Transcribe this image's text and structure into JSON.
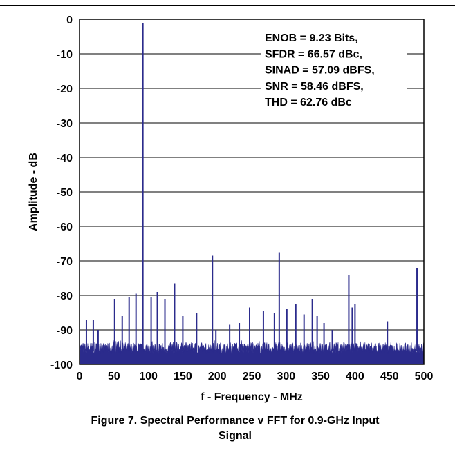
{
  "chart_data": {
    "type": "line",
    "ylabel": "Amplitude - dB",
    "xlabel": "f - Frequency - MHz",
    "xlim": [
      0,
      500
    ],
    "ylim": [
      -100,
      0
    ],
    "x_ticks": [
      "0",
      "50",
      "100",
      "150",
      "200",
      "250",
      "300",
      "350",
      "400",
      "450",
      "500"
    ],
    "y_ticks": [
      "0",
      "-10",
      "-20",
      "-30",
      "-40",
      "-50",
      "-60",
      "-70",
      "-80",
      "-90",
      "-100"
    ],
    "grid": "horizontal",
    "series_color": "#2b2b8c",
    "noise_floor_db": [
      -97,
      -93
    ],
    "spurs": [
      {
        "x": 92,
        "y": -1
      },
      {
        "x": 290,
        "y": -67.5
      },
      {
        "x": 193,
        "y": -68.5
      },
      {
        "x": 490,
        "y": -72
      },
      {
        "x": 391,
        "y": -74
      },
      {
        "x": 138,
        "y": -76.5
      },
      {
        "x": 82,
        "y": -79.5
      },
      {
        "x": 113,
        "y": -79
      },
      {
        "x": 72,
        "y": -80.5
      },
      {
        "x": 104,
        "y": -80.5
      },
      {
        "x": 124,
        "y": -81
      },
      {
        "x": 51,
        "y": -81
      },
      {
        "x": 400,
        "y": -82.5
      },
      {
        "x": 314,
        "y": -82.5
      },
      {
        "x": 338,
        "y": -81
      },
      {
        "x": 396,
        "y": -83.5
      },
      {
        "x": 247,
        "y": -83.5
      },
      {
        "x": 301,
        "y": -84
      },
      {
        "x": 267,
        "y": -84.5
      },
      {
        "x": 283,
        "y": -85
      },
      {
        "x": 170,
        "y": -85
      },
      {
        "x": 326,
        "y": -85.5
      },
      {
        "x": 345,
        "y": -86
      },
      {
        "x": 150,
        "y": -86
      },
      {
        "x": 62,
        "y": -86
      },
      {
        "x": 10,
        "y": -87
      },
      {
        "x": 20,
        "y": -87
      },
      {
        "x": 447,
        "y": -87.5
      },
      {
        "x": 355,
        "y": -88
      },
      {
        "x": 232,
        "y": -88
      },
      {
        "x": 218,
        "y": -88.5
      },
      {
        "x": 367,
        "y": -90
      },
      {
        "x": 198,
        "y": -90
      },
      {
        "x": 27,
        "y": -90
      }
    ]
  },
  "metrics": [
    "ENOB = 9.23 Bits,",
    "SFDR = 66.57 dBc,",
    "SINAD = 57.09 dBFS,",
    "SNR = 58.46 dBFS,",
    "THD = 62.76 dBc"
  ],
  "caption": {
    "line1": "Figure 7. Spectral Performance v FFT for 0.9-GHz Input",
    "line2": "Signal"
  }
}
